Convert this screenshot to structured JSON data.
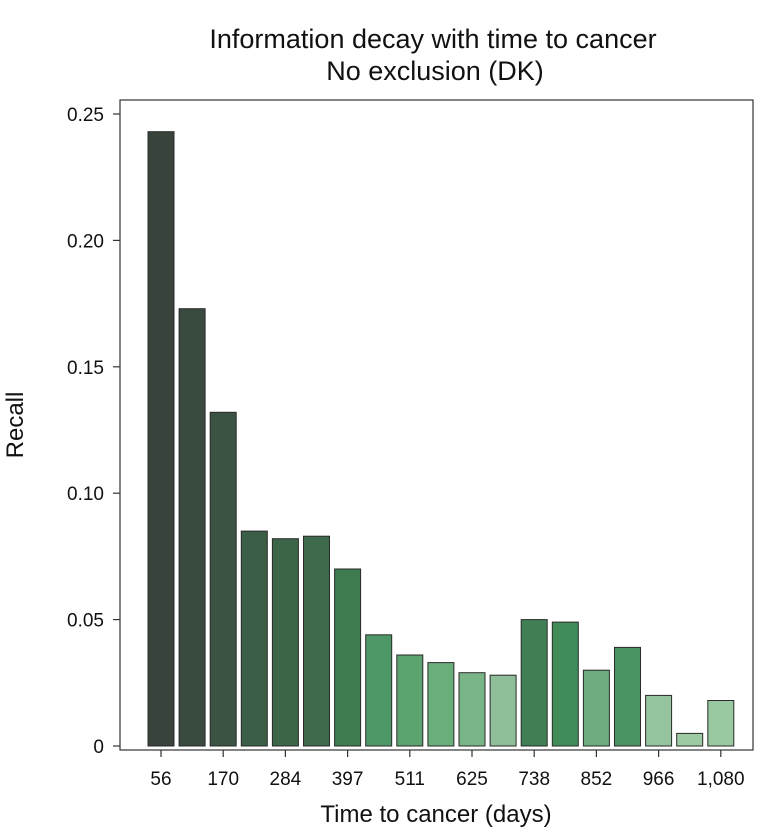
{
  "chart_data": {
    "type": "bar",
    "title": "Information decay with time to cancer",
    "subtitle": "No exclusion (DK)",
    "xlabel": "Time to cancer (days)",
    "ylabel": "Recall",
    "ylim": [
      0,
      0.257
    ],
    "yticks": [
      0,
      0.05,
      0.1,
      0.15,
      0.2,
      0.25
    ],
    "ytick_labels": [
      "0",
      "0.05",
      "0.10",
      "0.15",
      "0.20",
      "0.25"
    ],
    "xtick_labels": [
      "56",
      "170",
      "284",
      "397",
      "511",
      "625",
      "738",
      "852",
      "966",
      "1,080"
    ],
    "grid": false,
    "values": [
      0.243,
      0.173,
      0.132,
      0.085,
      0.082,
      0.083,
      0.07,
      0.044,
      0.036,
      0.033,
      0.029,
      0.028,
      0.05,
      0.049,
      0.03,
      0.039,
      0.02,
      0.005,
      0.018
    ],
    "colors": [
      "#38433b",
      "#394b3f",
      "#3a5342",
      "#3b5f46",
      "#3d6548",
      "#3e6a4b",
      "#3e7b4f",
      "#4d9866",
      "#5ba36f",
      "#6aae7c",
      "#7ab587",
      "#8ebf98",
      "#407f54",
      "#408c59",
      "#6dac7e",
      "#4a9463",
      "#95c39d",
      "#9fcba4",
      "#9ac8a1"
    ]
  }
}
